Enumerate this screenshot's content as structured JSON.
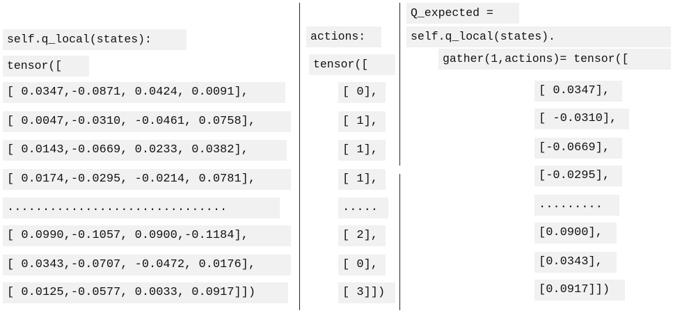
{
  "states": {
    "header": "self.q_local(states):",
    "tensor_open": "tensor([",
    "rows": [
      "[ 0.0347,-0.0871, 0.0424, 0.0091],",
      "[ 0.0047,-0.0310, -0.0461, 0.0758],",
      "[ 0.0143,-0.0669, 0.0233, 0.0382],",
      "[ 0.0174,-0.0295, -0.0214, 0.0781],",
      "...............................",
      "[ 0.0990,-0.1057, 0.0900,-0.1184],",
      "[ 0.0343,-0.0707, -0.0472, 0.0176],",
      "[ 0.0125,-0.0577, 0.0033, 0.0917]])"
    ]
  },
  "actions": {
    "header": "actions:",
    "tensor_open": "tensor([",
    "rows": [
      "[ 0],",
      "[ 1],",
      "[ 1],",
      "[ 1],",
      ".....",
      "[ 2],",
      "[ 0],",
      "[ 3]])"
    ]
  },
  "q_expected": {
    "line1": "Q_expected =",
    "line2": "self.q_local(states).",
    "line3": "gather(1,actions)= tensor([",
    "rows": [
      "[ 0.0347],",
      "[ -0.0310],",
      "[-0.0669],",
      "[-0.0295],",
      ".........",
      "[0.0900],",
      "[0.0343],",
      "[0.0917]])"
    ]
  }
}
